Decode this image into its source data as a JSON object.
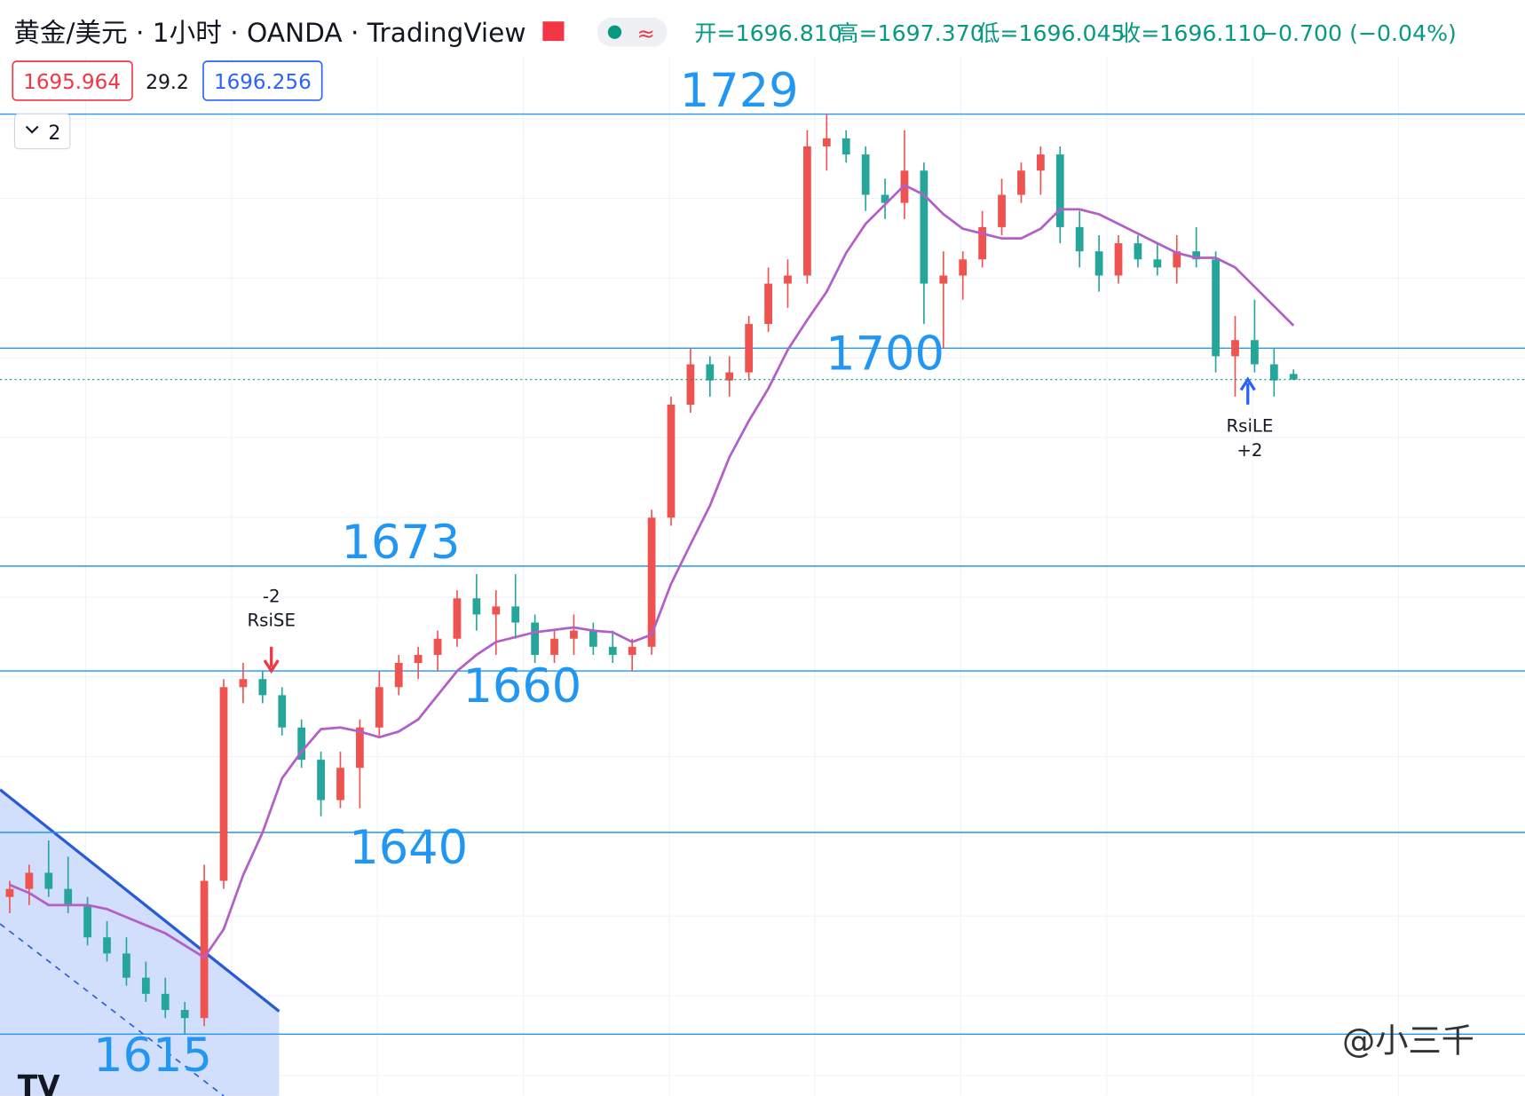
{
  "chart_data": {
    "type": "candlestick",
    "header": {
      "symbol": "黄金/美元 · 1小时 · OANDA · TradingView",
      "open": "开=1696.810",
      "high": "高=1697.370",
      "low": "低=1696.045",
      "close": "收=1696.110",
      "change": "−0.700 (−0.04%)"
    },
    "badges": {
      "bid": "1695.964",
      "spread": "29.2",
      "ask": "1696.256",
      "indicators": "2"
    },
    "up_color": "#ef5350",
    "down_color": "#26a69a",
    "ma_color": "#b35fc8",
    "level_color": "#2196f3",
    "ylim": [
      1607.35,
      1743.13
    ],
    "levels": [
      1729,
      1700,
      1673,
      1660,
      1640,
      1615
    ],
    "candles": [
      [
        1632,
        1634,
        1630,
        1633
      ],
      [
        1633,
        1636,
        1631,
        1635
      ],
      [
        1635,
        1639,
        1632,
        1633
      ],
      [
        1633,
        1637,
        1630,
        1631
      ],
      [
        1631,
        1632,
        1626,
        1627
      ],
      [
        1627,
        1629,
        1624,
        1625
      ],
      [
        1625,
        1627,
        1621,
        1622
      ],
      [
        1622,
        1624,
        1619,
        1620
      ],
      [
        1620,
        1622,
        1617,
        1618
      ],
      [
        1618,
        1619,
        1615,
        1617
      ],
      [
        1617,
        1636,
        1616,
        1634
      ],
      [
        1634,
        1659,
        1633,
        1658
      ],
      [
        1658,
        1661,
        1656,
        1659
      ],
      [
        1659,
        1660,
        1656,
        1657
      ],
      [
        1657,
        1658,
        1652,
        1653
      ],
      [
        1653,
        1654,
        1648,
        1649
      ],
      [
        1649,
        1650,
        1642,
        1644
      ],
      [
        1644,
        1650,
        1643,
        1648
      ],
      [
        1648,
        1654,
        1643,
        1653
      ],
      [
        1653,
        1660,
        1652,
        1658
      ],
      [
        1658,
        1662,
        1657,
        1661
      ],
      [
        1661,
        1663,
        1659,
        1662
      ],
      [
        1662,
        1665,
        1660,
        1664
      ],
      [
        1664,
        1670,
        1663,
        1669
      ],
      [
        1669,
        1672,
        1665,
        1667
      ],
      [
        1667,
        1670,
        1662,
        1668
      ],
      [
        1668,
        1672,
        1664,
        1666
      ],
      [
        1666,
        1667,
        1661,
        1662
      ],
      [
        1662,
        1665,
        1661,
        1664
      ],
      [
        1664,
        1667,
        1662,
        1665
      ],
      [
        1665,
        1666,
        1662,
        1663
      ],
      [
        1663,
        1665,
        1661,
        1662
      ],
      [
        1662,
        1664,
        1660,
        1663
      ],
      [
        1663,
        1680,
        1662,
        1679
      ],
      [
        1679,
        1694,
        1678,
        1693
      ],
      [
        1693,
        1700,
        1692,
        1698
      ],
      [
        1698,
        1699,
        1694,
        1696
      ],
      [
        1696,
        1699,
        1694,
        1697
      ],
      [
        1697,
        1704,
        1696,
        1703
      ],
      [
        1703,
        1710,
        1702,
        1708
      ],
      [
        1708,
        1711,
        1705,
        1709
      ],
      [
        1709,
        1727,
        1708,
        1725
      ],
      [
        1725,
        1729,
        1722,
        1726
      ],
      [
        1726,
        1727,
        1723,
        1724
      ],
      [
        1724,
        1725,
        1717,
        1719
      ],
      [
        1719,
        1721,
        1716,
        1718
      ],
      [
        1718,
        1727,
        1716,
        1722
      ],
      [
        1722,
        1723,
        1703,
        1708
      ],
      [
        1708,
        1712,
        1700,
        1709
      ],
      [
        1709,
        1712,
        1706,
        1711
      ],
      [
        1711,
        1717,
        1710,
        1715
      ],
      [
        1715,
        1721,
        1714,
        1719
      ],
      [
        1719,
        1723,
        1718,
        1722
      ],
      [
        1722,
        1725,
        1719,
        1724
      ],
      [
        1724,
        1725,
        1713,
        1715
      ],
      [
        1715,
        1717,
        1710,
        1712
      ],
      [
        1712,
        1714,
        1707,
        1709
      ],
      [
        1709,
        1714,
        1708,
        1713
      ],
      [
        1713,
        1714,
        1710,
        1711
      ],
      [
        1711,
        1713,
        1709,
        1710
      ],
      [
        1710,
        1714,
        1708,
        1712
      ],
      [
        1712,
        1715,
        1710,
        1711
      ],
      [
        1711,
        1712,
        1697,
        1699
      ],
      [
        1699,
        1704,
        1694,
        1701
      ],
      [
        1701,
        1706,
        1697,
        1698
      ],
      [
        1698,
        1700,
        1694,
        1696
      ],
      [
        1696.81,
        1697.37,
        1696.045,
        1696.11
      ]
    ],
    "ma": [
      1633.5,
      1632.5,
      1631,
      1631,
      1631,
      1630.5,
      1629.5,
      1628.5,
      1627.5,
      1626,
      1624.5,
      1628,
      1634.7,
      1640,
      1646.7,
      1650,
      1652.8,
      1653,
      1652.5,
      1651.8,
      1652.5,
      1654,
      1657,
      1660,
      1662,
      1663.6,
      1664.2,
      1664.8,
      1665.1,
      1665.4,
      1665,
      1664.8,
      1663.6,
      1664.5,
      1670.8,
      1675.7,
      1680.5,
      1686.5,
      1691,
      1695,
      1699.8,
      1703.5,
      1707,
      1711.8,
      1715.4,
      1717.8,
      1720.2,
      1719,
      1716.6,
      1714.8,
      1714.2,
      1713.6,
      1713.6,
      1714.8,
      1717.2,
      1717.2,
      1716.6,
      1715.4,
      1714.2,
      1713,
      1711.8,
      1711.2,
      1711.2,
      1710,
      1707.6,
      1705.2,
      1702.8
    ],
    "signals": [
      {
        "label": "-2",
        "name": "RsiSE"
      },
      {
        "label": "RsiLE",
        "name": "+2"
      }
    ],
    "watermark": "@小三千"
  }
}
